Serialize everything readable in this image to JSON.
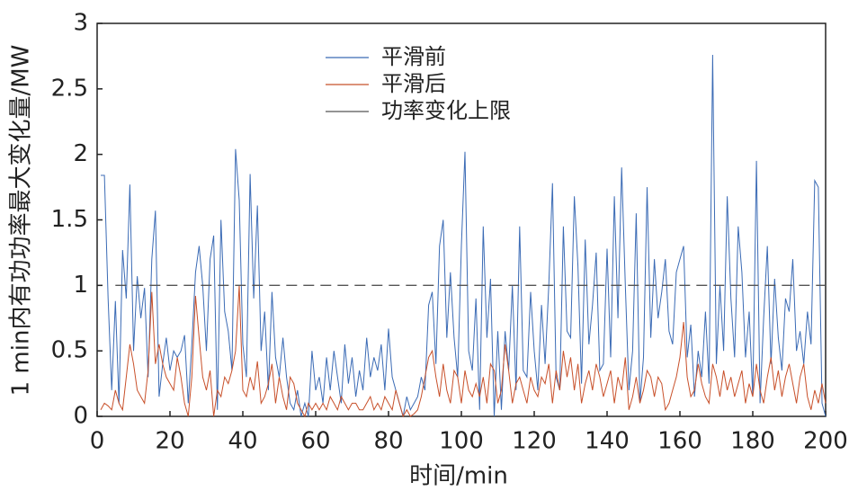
{
  "chart_data": {
    "type": "line",
    "xlabel": "时间/min",
    "ylabel": "1 min内有功功率最大变化量/MW",
    "x": [
      1,
      2,
      3,
      4,
      5,
      6,
      7,
      8,
      9,
      10,
      11,
      12,
      13,
      14,
      15,
      16,
      17,
      18,
      19,
      20,
      21,
      22,
      23,
      24,
      25,
      26,
      27,
      28,
      29,
      30,
      31,
      32,
      33,
      34,
      35,
      36,
      37,
      38,
      39,
      40,
      41,
      42,
      43,
      44,
      45,
      46,
      47,
      48,
      49,
      50,
      51,
      52,
      53,
      54,
      55,
      56,
      57,
      58,
      59,
      60,
      61,
      62,
      63,
      64,
      65,
      66,
      67,
      68,
      69,
      70,
      71,
      72,
      73,
      74,
      75,
      76,
      77,
      78,
      79,
      80,
      81,
      82,
      83,
      84,
      85,
      86,
      87,
      88,
      89,
      90,
      91,
      92,
      93,
      94,
      95,
      96,
      97,
      98,
      99,
      100,
      101,
      102,
      103,
      104,
      105,
      106,
      107,
      108,
      109,
      110,
      111,
      112,
      113,
      114,
      115,
      116,
      117,
      118,
      119,
      120,
      121,
      122,
      123,
      124,
      125,
      126,
      127,
      128,
      129,
      130,
      131,
      132,
      133,
      134,
      135,
      136,
      137,
      138,
      139,
      140,
      141,
      142,
      143,
      144,
      145,
      146,
      147,
      148,
      149,
      150,
      151,
      152,
      153,
      154,
      155,
      156,
      157,
      158,
      159,
      160,
      161,
      162,
      163,
      164,
      165,
      166,
      167,
      168,
      169,
      170,
      171,
      172,
      173,
      174,
      175,
      176,
      177,
      178,
      179,
      180,
      181,
      182,
      183,
      184,
      185,
      186,
      187,
      188,
      189,
      190,
      191,
      192,
      193,
      194,
      195,
      196,
      197,
      198,
      199,
      200
    ],
    "series": [
      {
        "name": "平滑前",
        "color": "#3b6bb5",
        "values": [
          1.84,
          1.84,
          0.9,
          0.2,
          0.88,
          0.1,
          1.27,
          0.9,
          1.77,
          0.5,
          1.07,
          0.75,
          0.98,
          0.3,
          1.2,
          1.57,
          0.15,
          0.4,
          0.6,
          0.35,
          0.5,
          0.45,
          0.5,
          0.62,
          0.1,
          0.55,
          1.1,
          1.3,
          1.0,
          0.5,
          1.2,
          1.38,
          0.05,
          1.5,
          0.8,
          0.65,
          0.35,
          2.04,
          1.65,
          0.55,
          0.3,
          1.85,
          0.9,
          1.61,
          0.5,
          0.8,
          0.2,
          0.95,
          0.45,
          0.3,
          0.6,
          0.3,
          0.1,
          0.05,
          0.2,
          0.0,
          0.1,
          0.0,
          0.5,
          0.2,
          0.3,
          0.1,
          0.45,
          0.2,
          0.5,
          0.3,
          0.1,
          0.55,
          0.25,
          0.45,
          0.15,
          0.35,
          0.2,
          0.6,
          0.3,
          0.45,
          0.35,
          0.55,
          0.2,
          0.67,
          0.3,
          0.2,
          0.1,
          0.0,
          0.15,
          0.05,
          0.1,
          0.15,
          0.3,
          0.2,
          0.85,
          0.95,
          0.4,
          1.3,
          1.5,
          0.6,
          1.1,
          0.6,
          0.3,
          1.3,
          2.02,
          0.5,
          0.35,
          0.9,
          0.05,
          1.45,
          0.6,
          1.05,
          0.0,
          0.65,
          0.05,
          0.65,
          0.35,
          1.0,
          0.2,
          1.45,
          0.35,
          0.3,
          0.95,
          0.5,
          0.2,
          0.85,
          0.4,
          1.0,
          1.78,
          0.3,
          0.2,
          1.45,
          0.65,
          0.6,
          1.68,
          1.15,
          0.25,
          1.35,
          0.55,
          0.85,
          1.25,
          0.35,
          0.4,
          1.28,
          0.45,
          1.68,
          0.75,
          1.9,
          1.0,
          0.2,
          0.5,
          1.55,
          0.1,
          0.45,
          1.75,
          0.6,
          1.2,
          0.75,
          0.95,
          1.2,
          0.65,
          0.55,
          1.1,
          1.2,
          1.3,
          0.45,
          0.7,
          0.15,
          0.5,
          0.3,
          0.8,
          0.25,
          2.76,
          0.4,
          1.0,
          0.5,
          1.68,
          0.9,
          0.45,
          1.45,
          1.1,
          0.45,
          0.8,
          0.15,
          1.95,
          0.1,
          0.75,
          1.3,
          0.4,
          1.05,
          0.6,
          0.35,
          0.9,
          0.8,
          1.2,
          0.5,
          0.65,
          0.4,
          0.8,
          0.55,
          1.8,
          1.75,
          0.1,
          0.0
        ]
      },
      {
        "name": "平滑后",
        "color": "#c8502a",
        "values": [
          0.05,
          0.1,
          0.08,
          0.05,
          0.2,
          0.1,
          0.05,
          0.3,
          0.55,
          0.4,
          0.2,
          0.15,
          0.1,
          0.35,
          0.95,
          0.4,
          0.55,
          0.4,
          0.3,
          0.25,
          0.2,
          0.45,
          0.3,
          0.1,
          0.0,
          0.3,
          0.92,
          0.6,
          0.3,
          0.2,
          0.35,
          0.0,
          0.2,
          0.15,
          0.3,
          0.25,
          0.35,
          0.5,
          1.0,
          0.2,
          0.15,
          0.3,
          0.2,
          0.42,
          0.1,
          0.15,
          0.25,
          0.4,
          0.1,
          0.3,
          0.15,
          0.05,
          0.3,
          0.25,
          0.1,
          0.05,
          0.0,
          0.1,
          0.05,
          0.1,
          0.05,
          0.1,
          0.05,
          0.15,
          0.1,
          0.05,
          0.15,
          0.1,
          0.05,
          0.1,
          0.1,
          0.05,
          0.05,
          0.1,
          0.15,
          0.05,
          0.1,
          0.05,
          0.15,
          0.1,
          0.05,
          0.2,
          0.1,
          0.0,
          0.05,
          0.0,
          0.02,
          0.05,
          0.15,
          0.3,
          0.45,
          0.5,
          0.3,
          0.15,
          0.4,
          0.2,
          0.1,
          0.35,
          0.3,
          0.1,
          0.35,
          0.2,
          0.15,
          0.25,
          0.15,
          0.3,
          0.1,
          0.4,
          0.35,
          0.1,
          0.2,
          0.55,
          0.35,
          0.1,
          0.25,
          0.3,
          0.2,
          0.1,
          0.3,
          0.2,
          0.15,
          0.3,
          0.25,
          0.4,
          0.1,
          0.35,
          0.2,
          0.5,
          0.3,
          0.45,
          0.2,
          0.4,
          0.1,
          0.25,
          0.35,
          0.2,
          0.4,
          0.3,
          0.15,
          0.25,
          0.35,
          0.1,
          0.3,
          0.2,
          0.45,
          0.05,
          0.15,
          0.3,
          0.1,
          0.2,
          0.35,
          0.3,
          0.15,
          0.3,
          0.25,
          0.05,
          0.1,
          0.2,
          0.3,
          0.45,
          0.72,
          0.3,
          0.15,
          0.2,
          0.4,
          0.25,
          0.15,
          0.1,
          0.4,
          0.3,
          0.15,
          0.35,
          0.2,
          0.3,
          0.15,
          0.25,
          0.35,
          0.1,
          0.25,
          0.15,
          0.4,
          0.2,
          0.1,
          0.3,
          0.45,
          0.2,
          0.35,
          0.15,
          0.3,
          0.4,
          0.25,
          0.1,
          0.3,
          0.4,
          0.15,
          0.05,
          0.2,
          0.1,
          0.25,
          0.1
        ]
      },
      {
        "name": "功率变化上限",
        "color": "#555555",
        "dashed": true,
        "x": [
          5,
          200
        ],
        "values": [
          1,
          1
        ]
      }
    ],
    "xlim": [
      0,
      200
    ],
    "xticks": [
      0,
      20,
      40,
      60,
      80,
      100,
      120,
      140,
      160,
      180,
      200
    ],
    "ylim": [
      0,
      3
    ],
    "yticks": [
      0,
      0.5,
      1,
      1.5,
      2,
      2.5,
      3
    ],
    "legend": "upper center"
  }
}
